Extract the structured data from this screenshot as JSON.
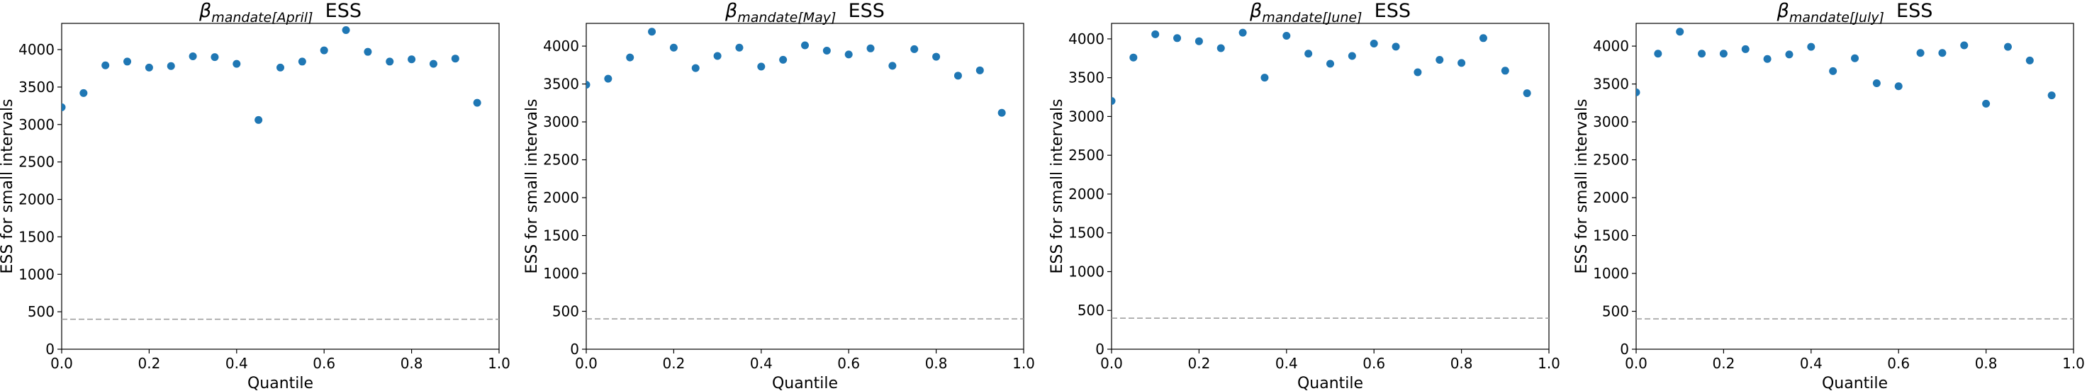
{
  "chart_data": [
    {
      "type": "scatter",
      "title": {
        "symbol": "β",
        "subscript": "mandate[April]",
        "suffix": "ESS"
      },
      "xlabel": "Quantile",
      "ylabel": "ESS for small intervals",
      "xlim": [
        0.0,
        1.0
      ],
      "ylim": [
        0,
        4350
      ],
      "xticks": [
        "0.0",
        "0.2",
        "0.4",
        "0.6",
        "0.8",
        "1.0"
      ],
      "yticks": [
        "0",
        "500",
        "1000",
        "1500",
        "2000",
        "2500",
        "3000",
        "3500",
        "4000"
      ],
      "x": [
        0.0,
        0.05,
        0.1,
        0.15,
        0.2,
        0.25,
        0.3,
        0.35,
        0.4,
        0.45,
        0.5,
        0.55,
        0.6,
        0.65,
        0.7,
        0.75,
        0.8,
        0.85,
        0.9,
        0.95
      ],
      "y": [
        3230,
        3420,
        3790,
        3840,
        3760,
        3780,
        3910,
        3900,
        3810,
        3060,
        3760,
        3840,
        3990,
        4260,
        3970,
        3840,
        3870,
        3810,
        3880,
        3290
      ],
      "reference_line": 400,
      "grid": false
    },
    {
      "type": "scatter",
      "title": {
        "symbol": "β",
        "subscript": "mandate[May]",
        "suffix": "ESS"
      },
      "xlabel": "Quantile",
      "ylabel": "ESS for small intervals",
      "xlim": [
        0.0,
        1.0
      ],
      "ylim": [
        0,
        4300
      ],
      "xticks": [
        "0.0",
        "0.2",
        "0.4",
        "0.6",
        "0.8",
        "1.0"
      ],
      "yticks": [
        "0",
        "500",
        "1000",
        "1500",
        "2000",
        "2500",
        "3000",
        "3500",
        "4000"
      ],
      "x": [
        0.0,
        0.05,
        0.1,
        0.15,
        0.2,
        0.25,
        0.3,
        0.35,
        0.4,
        0.45,
        0.5,
        0.55,
        0.6,
        0.65,
        0.7,
        0.75,
        0.8,
        0.85,
        0.9,
        0.95
      ],
      "y": [
        3490,
        3570,
        3850,
        4190,
        3980,
        3710,
        3870,
        3980,
        3730,
        3820,
        4010,
        3940,
        3890,
        3970,
        3740,
        3960,
        3860,
        3610,
        3680,
        3120
      ],
      "reference_line": 400,
      "grid": false
    },
    {
      "type": "scatter",
      "title": {
        "symbol": "β",
        "subscript": "mandate[June]",
        "suffix": "ESS"
      },
      "xlabel": "Quantile",
      "ylabel": "ESS for small intervals",
      "xlim": [
        0.0,
        1.0
      ],
      "ylim": [
        0,
        4200
      ],
      "xticks": [
        "0.0",
        "0.2",
        "0.4",
        "0.6",
        "0.8",
        "1.0"
      ],
      "yticks": [
        "0",
        "500",
        "1000",
        "1500",
        "2000",
        "2500",
        "3000",
        "3500",
        "4000"
      ],
      "x": [
        0.0,
        0.05,
        0.1,
        0.15,
        0.2,
        0.25,
        0.3,
        0.35,
        0.4,
        0.45,
        0.5,
        0.55,
        0.6,
        0.65,
        0.7,
        0.75,
        0.8,
        0.85,
        0.9,
        0.95
      ],
      "y": [
        3200,
        3760,
        4060,
        4010,
        3970,
        3880,
        4080,
        3500,
        4040,
        3810,
        3680,
        3780,
        3940,
        3900,
        3570,
        3730,
        3690,
        4010,
        3590,
        3300
      ],
      "reference_line": 400,
      "grid": false
    },
    {
      "type": "scatter",
      "title": {
        "symbol": "β",
        "subscript": "mandate[July]",
        "suffix": "ESS"
      },
      "xlabel": "Quantile",
      "ylabel": "ESS for small intervals",
      "xlim": [
        0.0,
        1.0
      ],
      "ylim": [
        0,
        4300
      ],
      "xticks": [
        "0.0",
        "0.2",
        "0.4",
        "0.6",
        "0.8",
        "1.0"
      ],
      "yticks": [
        "0",
        "500",
        "1000",
        "1500",
        "2000",
        "2500",
        "3000",
        "3500",
        "4000"
      ],
      "x": [
        0.0,
        0.05,
        0.1,
        0.15,
        0.2,
        0.25,
        0.3,
        0.35,
        0.4,
        0.45,
        0.5,
        0.55,
        0.6,
        0.65,
        0.7,
        0.75,
        0.8,
        0.85,
        0.9,
        0.95
      ],
      "y": [
        3390,
        3900,
        4190,
        3900,
        3900,
        3960,
        3830,
        3890,
        3990,
        3670,
        3840,
        3510,
        3470,
        3910,
        3910,
        4010,
        3240,
        3990,
        3810,
        3350
      ],
      "reference_line": 400,
      "grid": false
    }
  ],
  "style": {
    "marker_color": "#1f77b4",
    "reference_line_color": "#a0a0a0"
  }
}
